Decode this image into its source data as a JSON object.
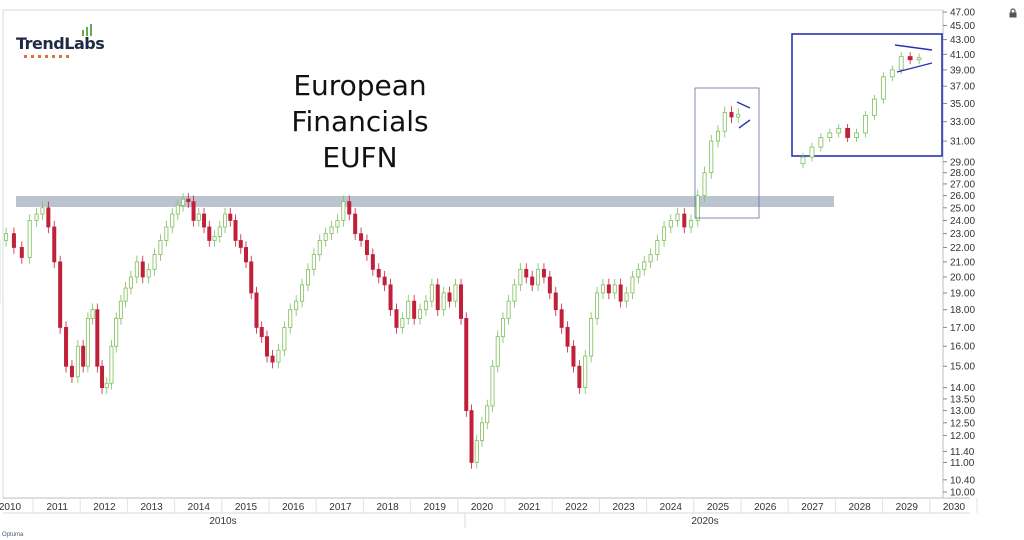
{
  "logo": {
    "text": "TrendLabs"
  },
  "footer": {
    "brand": "Optuma"
  },
  "chart_data": {
    "type": "candlestick",
    "title": "European Financials",
    "subtitle": "EUFN",
    "y_scale": "log",
    "ylim": [
      10.0,
      47.0
    ],
    "y_ticks": [
      "47.00",
      "45.00",
      "43.00",
      "41.00",
      "39.00",
      "37.00",
      "35.00",
      "33.00",
      "31.00",
      "29.00",
      "28.00",
      "27.00",
      "26.00",
      "25.00",
      "24.00",
      "23.00",
      "22.00",
      "21.00",
      "20.00",
      "19.00",
      "18.00",
      "17.00",
      "16.00",
      "15.00",
      "14.00",
      "13.50",
      "13.00",
      "12.50",
      "12.00",
      "11.40",
      "11.00",
      "10.40",
      "10.00"
    ],
    "x_year_labels": [
      "2010",
      "2011",
      "2012",
      "2013",
      "2014",
      "2015",
      "2016",
      "2017",
      "2018",
      "2019",
      "2020",
      "2021",
      "2022",
      "2023",
      "2024",
      "2025",
      "2026",
      "2027",
      "2028",
      "2029",
      "2030"
    ],
    "decade_labels": [
      "2010s",
      "2020s"
    ],
    "resistance_zone": [
      25.2,
      25.9
    ],
    "monthly_closes": [
      {
        "year": 2010,
        "points": [
          18.4,
          22.5,
          23.0,
          22.0,
          21.3,
          24.0
        ]
      },
      {
        "year": 2011,
        "points": [
          24.5,
          25.0,
          23.5,
          21.0,
          17.0,
          15.0,
          14.5,
          16.0
        ]
      },
      {
        "year": 2012,
        "points": [
          15.0,
          17.5,
          18.0,
          15.0,
          14.0,
          14.2,
          16.0,
          17.5,
          18.5,
          19.3
        ]
      },
      {
        "year": 2013,
        "points": [
          20.0,
          21.0,
          20.0,
          20.5,
          21.5,
          22.5,
          23.5,
          24.5
        ]
      },
      {
        "year": 2014,
        "points": [
          25.2,
          25.7,
          25.5,
          24.0,
          24.5,
          23.5,
          22.5,
          22.8,
          23.5
        ]
      },
      {
        "year": 2015,
        "points": [
          24.5,
          24.0,
          22.5,
          22.0,
          21.0,
          19.0,
          17.0,
          16.5,
          15.5
        ]
      },
      {
        "year": 2016,
        "points": [
          15.2,
          15.8,
          17.0,
          18.0,
          18.5,
          19.5,
          20.5,
          21.5
        ]
      },
      {
        "year": 2017,
        "points": [
          22.5,
          23.0,
          23.5,
          24.0,
          25.5,
          24.5,
          23.0,
          22.5
        ]
      },
      {
        "year": 2018,
        "points": [
          21.5,
          20.5,
          20.0,
          19.5,
          18.0,
          17.0,
          17.5,
          18.5
        ]
      },
      {
        "year": 2019,
        "points": [
          17.5,
          18.0,
          18.5,
          19.5,
          18.0,
          19.0,
          18.5,
          19.5
        ]
      },
      {
        "year": 2020,
        "points": [
          17.5,
          13.0,
          11.0,
          11.8,
          12.5,
          13.2,
          15.0,
          16.5,
          17.5
        ]
      },
      {
        "year": 2021,
        "points": [
          18.5,
          19.5,
          20.5,
          20.0,
          19.5,
          20.5,
          20.0,
          19.0
        ]
      },
      {
        "year": 2022,
        "points": [
          18.0,
          17.0,
          16.0,
          15.0,
          14.0,
          15.5,
          17.5,
          19.0
        ]
      },
      {
        "year": 2023,
        "points": [
          19.5,
          19.0,
          19.5,
          18.5,
          19.0,
          20.0,
          20.5,
          21.0
        ]
      },
      {
        "year": 2024,
        "points": [
          21.5,
          22.5,
          23.5,
          24.0,
          24.5,
          23.5,
          24.0
        ]
      },
      {
        "year": 2025,
        "points": [
          26.0,
          28.0,
          31.0,
          32.0,
          34.0,
          33.5,
          33.8
        ]
      }
    ]
  }
}
